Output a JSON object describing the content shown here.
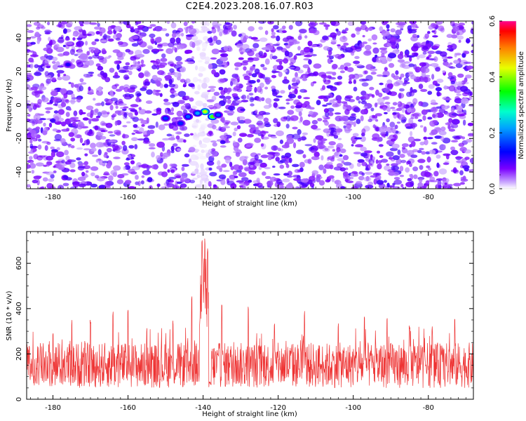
{
  "title": "C2E4.2023.208.16.07.R03",
  "chart_data": [
    {
      "type": "heatmap",
      "xlabel": "Height of straight line (km)",
      "ylabel": "Frequency (Hz)",
      "xlim": [
        -187,
        -68
      ],
      "ylim": [
        -50,
        50
      ],
      "xticks": [
        -180,
        -160,
        -140,
        -120,
        -100,
        -80
      ],
      "yticks": [
        -40,
        -20,
        0,
        20,
        40
      ],
      "colorbar": {
        "label": "Normalized spectral amplitude",
        "range": [
          0.0,
          0.6
        ],
        "ticks": [
          "0.0",
          "0.2",
          "0.4",
          "0.6"
        ],
        "colormap": "rainbow"
      },
      "background_level": 0.08,
      "gap_x": [
        -142.5,
        -138.5
      ],
      "hotspots": [
        {
          "x": -139.5,
          "y": -4,
          "v": 0.42
        },
        {
          "x": -137.5,
          "y": -7,
          "v": 0.38
        },
        {
          "x": -141.5,
          "y": -5,
          "v": 0.22
        },
        {
          "x": -144,
          "y": -7,
          "v": 0.18
        },
        {
          "x": -150,
          "y": -8,
          "v": 0.16
        },
        {
          "x": -146,
          "y": -11,
          "v": 0.15
        },
        {
          "x": -136,
          "y": -6,
          "v": 0.17
        },
        {
          "x": -176,
          "y": 24,
          "v": 0.12
        }
      ]
    },
    {
      "type": "line",
      "xlabel": "Height of straight line (km)",
      "ylabel": "SNR (10 * v/v)",
      "xlim": [
        -187,
        -68
      ],
      "ylim": [
        0,
        740
      ],
      "xticks": [
        -180,
        -160,
        -140,
        -120,
        -100,
        -80
      ],
      "yticks": [
        0,
        200,
        400,
        600
      ],
      "color": "#ee3333",
      "baseline_range": [
        50,
        250
      ],
      "peaks": [
        {
          "x": -180,
          "y": 300
        },
        {
          "x": -175,
          "y": 350
        },
        {
          "x": -170,
          "y": 360
        },
        {
          "x": -164,
          "y": 390
        },
        {
          "x": -160,
          "y": 410
        },
        {
          "x": -155,
          "y": 320
        },
        {
          "x": -148,
          "y": 350
        },
        {
          "x": -143,
          "y": 455
        },
        {
          "x": -140.3,
          "y": 740
        },
        {
          "x": -139.5,
          "y": 720
        },
        {
          "x": -138.8,
          "y": 680
        },
        {
          "x": -135,
          "y": 430
        },
        {
          "x": -128,
          "y": 410
        },
        {
          "x": -121,
          "y": 345
        },
        {
          "x": -113,
          "y": 395
        },
        {
          "x": -104,
          "y": 340
        },
        {
          "x": -97,
          "y": 370
        },
        {
          "x": -91,
          "y": 375
        },
        {
          "x": -85,
          "y": 325
        },
        {
          "x": -79,
          "y": 325
        },
        {
          "x": -73,
          "y": 370
        }
      ],
      "gap": {
        "x": [
          -138.5,
          -137.8
        ],
        "low": 50
      }
    }
  ]
}
